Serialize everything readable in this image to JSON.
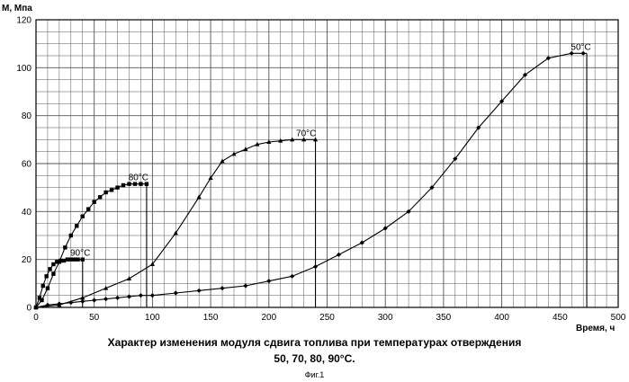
{
  "chart_data": {
    "type": "line",
    "ylabel": "М, Мпа",
    "xlabel": "Время, ч",
    "xlim": [
      0,
      500
    ],
    "ylim": [
      0,
      120
    ],
    "xticks": [
      0,
      50,
      100,
      150,
      200,
      250,
      300,
      350,
      400,
      450,
      500
    ],
    "yticks": [
      0,
      20,
      40,
      60,
      80,
      100,
      120
    ],
    "grid": true,
    "series": [
      {
        "name": "50°C",
        "x": [
          0,
          10,
          20,
          30,
          40,
          50,
          60,
          70,
          80,
          90,
          100,
          120,
          140,
          160,
          180,
          200,
          220,
          240,
          260,
          280,
          300,
          320,
          340,
          360,
          380,
          400,
          420,
          440,
          460,
          470
        ],
        "y": [
          0,
          1,
          1.5,
          2,
          2.5,
          3,
          3.5,
          4,
          4.5,
          5,
          5,
          6,
          7,
          8,
          9,
          11,
          13,
          17,
          22,
          27,
          33,
          40,
          50,
          62,
          75,
          86,
          97,
          104,
          106,
          106
        ]
      },
      {
        "name": "70°C",
        "x": [
          0,
          20,
          40,
          60,
          80,
          100,
          120,
          140,
          150,
          160,
          170,
          180,
          190,
          200,
          210,
          220,
          230,
          240
        ],
        "y": [
          0,
          1,
          4,
          8,
          12,
          18,
          31,
          46,
          54,
          61,
          64,
          66,
          68,
          69,
          69.5,
          70,
          70,
          70
        ]
      },
      {
        "name": "80°C",
        "x": [
          0,
          5,
          10,
          15,
          20,
          25,
          30,
          35,
          40,
          45,
          50,
          55,
          60,
          65,
          70,
          75,
          80,
          85,
          90,
          95
        ],
        "y": [
          0,
          3,
          8,
          14,
          19,
          25,
          30,
          34,
          38,
          41,
          44,
          46,
          48,
          49,
          50,
          51,
          51.5,
          51.5,
          51.5,
          51.5
        ]
      },
      {
        "name": "90°C",
        "x": [
          0,
          3,
          6,
          9,
          12,
          15,
          18,
          21,
          24,
          27,
          30,
          33,
          36,
          40
        ],
        "y": [
          0,
          4,
          9,
          13,
          16,
          18,
          19,
          19.5,
          19.5,
          20,
          20,
          20,
          20,
          20
        ]
      }
    ],
    "end_drop_x": {
      "50°C": 473,
      "70°C": 240,
      "80°C": 95,
      "90°C": 40
    },
    "label_anchor": {
      "50°C": [
        468,
        106
      ],
      "70°C": [
        232,
        70
      ],
      "80°C": [
        88,
        51.5
      ],
      "90°C": [
        38,
        20
      ]
    }
  },
  "caption": {
    "line1": "Характер изменения модуля сдвига топлива при температурах отверждения",
    "line2": "50, 70, 80, 90°С.",
    "figure": "Фиг.1"
  }
}
